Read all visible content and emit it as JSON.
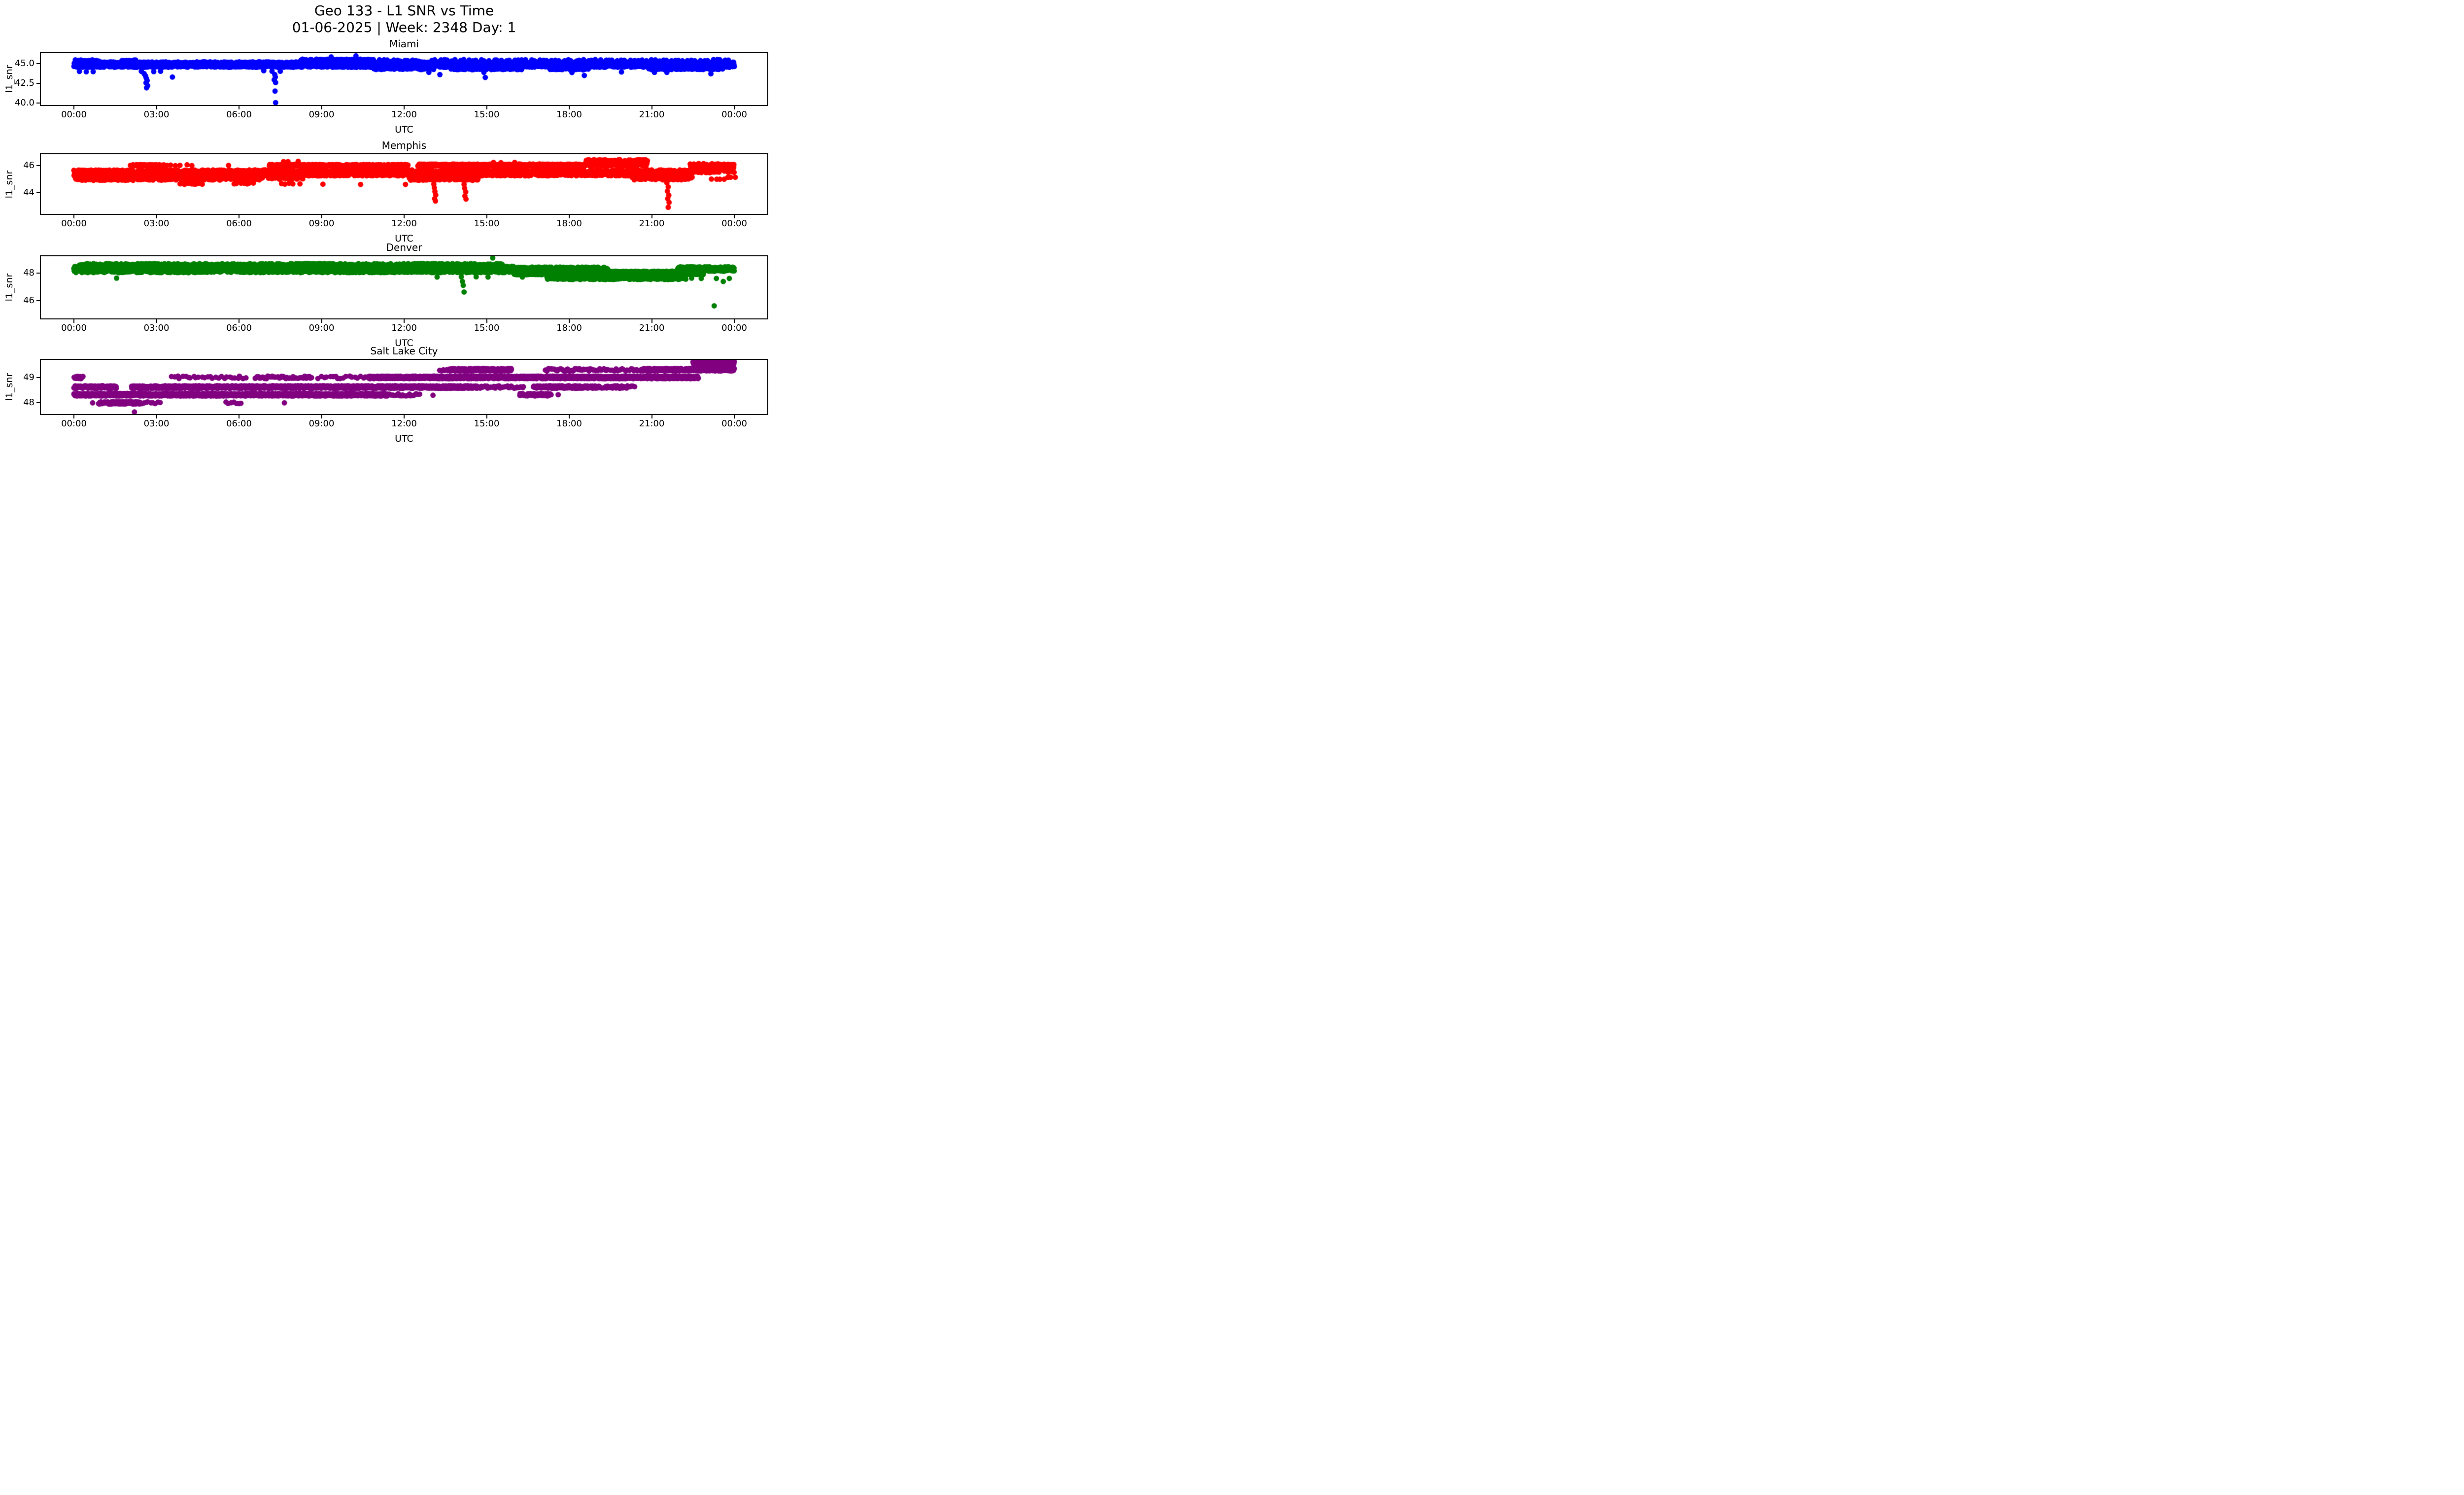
{
  "figure": {
    "suptitle_line1": "Geo 133 - L1 SNR vs Time",
    "suptitle_line2": "01-06-2025 | Week: 2348 Day: 1",
    "background_color": "#ffffff",
    "text_color": "#000000",
    "spine_color": "#000000"
  },
  "chart_data": {
    "type": "scatter",
    "title": "Geo 133 - L1 SNR vs Time",
    "subtitle": "01-06-2025 | Week: 2348 Day: 1",
    "xlabel": "UTC",
    "ylabel": "l1_snr",
    "marker": "o",
    "marker_radius_px": 5.5,
    "grid": false,
    "legend": "none",
    "x_axis": {
      "xlim_hours": [
        -1.2,
        25.2
      ],
      "ticks_hours": [
        0,
        3,
        6,
        9,
        12,
        15,
        18,
        21,
        24
      ],
      "tick_labels": [
        "00:00",
        "03:00",
        "06:00",
        "09:00",
        "12:00",
        "15:00",
        "18:00",
        "21:00",
        "00:00"
      ]
    },
    "band_format": "[t_start_hours, t_end_hours, y_center_snr, y_halfspread_snr, sample_step_minutes]",
    "point_format": "[t_hours, y_snr]",
    "subplots": [
      {
        "title": "Miami",
        "color": "#0000ff",
        "ylim": [
          39.72,
          46.42
        ],
        "yticks": [
          {
            "v": 45.0,
            "label": "45.0"
          },
          {
            "v": 42.5,
            "label": "42.5"
          },
          {
            "v": 40.0,
            "label": "40.0"
          }
        ],
        "bands": [
          [
            0,
            24,
            44.9,
            0.35,
            0.5
          ],
          [
            0.05,
            0.95,
            45.42,
            0.1,
            2.5
          ],
          [
            1.75,
            2.25,
            45.42,
            0.08,
            3
          ],
          [
            8.2,
            10.9,
            45.3,
            0.3,
            0.8
          ],
          [
            11.1,
            12.5,
            45.42,
            0.1,
            6
          ],
          [
            13.0,
            23.9,
            45.45,
            0.1,
            9
          ],
          [
            10.9,
            13.1,
            44.38,
            0.12,
            2.2
          ],
          [
            13.7,
            16.3,
            44.32,
            0.08,
            3.5
          ],
          [
            17.3,
            18.7,
            44.3,
            0.1,
            4
          ],
          [
            20.9,
            23.6,
            44.35,
            0.1,
            2.5
          ]
        ],
        "points": [
          [
            0.2,
            44.02
          ],
          [
            0.45,
            43.98
          ],
          [
            0.7,
            44.0
          ],
          [
            2.45,
            44.05
          ],
          [
            2.55,
            43.75
          ],
          [
            2.6,
            43.45
          ],
          [
            2.63,
            43.15
          ],
          [
            2.66,
            42.85
          ],
          [
            2.62,
            42.55
          ],
          [
            2.68,
            42.2
          ],
          [
            2.64,
            41.92
          ],
          [
            2.9,
            44.0
          ],
          [
            3.15,
            44.05
          ],
          [
            3.58,
            43.3
          ],
          [
            6.9,
            44.12
          ],
          [
            7.2,
            44.05
          ],
          [
            7.3,
            43.62
          ],
          [
            7.32,
            43.3
          ],
          [
            7.28,
            42.95
          ],
          [
            7.33,
            42.6
          ],
          [
            7.31,
            41.5
          ],
          [
            7.33,
            40.02
          ],
          [
            7.5,
            44.05
          ],
          [
            9.35,
            45.88
          ],
          [
            10.25,
            46.02
          ],
          [
            12.9,
            43.9
          ],
          [
            13.3,
            43.62
          ],
          [
            14.9,
            43.9
          ],
          [
            14.95,
            43.25
          ],
          [
            18.1,
            43.88
          ],
          [
            18.55,
            43.5
          ],
          [
            19.9,
            43.95
          ],
          [
            21.1,
            43.9
          ],
          [
            21.55,
            43.9
          ],
          [
            23.15,
            43.72
          ]
        ]
      },
      {
        "title": "Memphis",
        "color": "#ff0000",
        "ylim": [
          42.43,
          46.82
        ],
        "yticks": [
          {
            "v": 46,
            "label": "46"
          },
          {
            "v": 44,
            "label": "44"
          }
        ],
        "bands": [
          [
            0,
            22.4,
            45.45,
            0.22,
            0.5
          ],
          [
            22.4,
            24,
            45.8,
            0.33,
            0.4
          ],
          [
            0.05,
            2.2,
            45.0,
            0.1,
            1.2
          ],
          [
            2.3,
            6.9,
            45.0,
            0.09,
            2.4
          ],
          [
            7.1,
            8.3,
            45.0,
            0.08,
            6
          ],
          [
            12.2,
            14.7,
            45.0,
            0.1,
            1.4
          ],
          [
            20.3,
            22.5,
            45.05,
            0.12,
            2
          ],
          [
            23.2,
            24,
            45.05,
            0.08,
            8
          ],
          [
            2.05,
            3.3,
            46.0,
            0.06,
            1.2
          ],
          [
            3.4,
            4.3,
            46.0,
            0.05,
            10
          ],
          [
            7.1,
            12.15,
            46.0,
            0.07,
            0.9
          ],
          [
            12.5,
            18.6,
            46.02,
            0.08,
            0.7
          ],
          [
            18.6,
            20.85,
            46.18,
            0.25,
            0.6
          ],
          [
            3.85,
            4.75,
            44.65,
            0.05,
            5
          ],
          [
            5.8,
            6.5,
            44.68,
            0.04,
            7
          ],
          [
            7.5,
            8.25,
            44.65,
            0.04,
            10
          ]
        ],
        "points": [
          [
            5.62,
            46.0
          ],
          [
            7.62,
            46.28
          ],
          [
            7.78,
            46.28
          ],
          [
            8.15,
            46.3
          ],
          [
            9.05,
            44.62
          ],
          [
            10.42,
            44.6
          ],
          [
            12.05,
            44.6
          ],
          [
            13.08,
            44.62
          ],
          [
            13.1,
            44.35
          ],
          [
            13.12,
            44.08
          ],
          [
            13.15,
            43.82
          ],
          [
            13.11,
            43.55
          ],
          [
            13.14,
            43.38
          ],
          [
            14.18,
            44.6
          ],
          [
            14.2,
            44.32
          ],
          [
            14.24,
            44.05
          ],
          [
            14.21,
            43.75
          ],
          [
            14.25,
            43.52
          ],
          [
            15.25,
            46.22
          ],
          [
            15.52,
            46.2
          ],
          [
            16.02,
            46.22
          ],
          [
            21.35,
            45.0
          ],
          [
            21.5,
            44.95
          ],
          [
            21.55,
            44.72
          ],
          [
            21.6,
            44.42
          ],
          [
            21.57,
            44.1
          ],
          [
            21.62,
            43.8
          ],
          [
            21.58,
            43.55
          ],
          [
            21.63,
            43.28
          ],
          [
            21.6,
            42.92
          ]
        ]
      },
      {
        "title": "Denver",
        "color": "#008000",
        "ylim": [
          44.71,
          49.2
        ],
        "yticks": [
          {
            "v": 48,
            "label": "48"
          },
          {
            "v": 46,
            "label": "46"
          }
        ],
        "bands": [
          [
            0,
            16.0,
            48.25,
            0.23,
            0.5
          ],
          [
            0.2,
            15.6,
            48.62,
            0.06,
            4.5
          ],
          [
            8.1,
            9.4,
            48.62,
            0.06,
            1.2
          ],
          [
            12.3,
            13.6,
            48.62,
            0.06,
            1.5
          ],
          [
            16.0,
            22.9,
            48.0,
            0.13,
            0.6
          ],
          [
            16.0,
            19.4,
            48.3,
            0.12,
            0.8
          ],
          [
            17.2,
            22.25,
            47.62,
            0.1,
            1.1
          ],
          [
            21.95,
            24.0,
            48.28,
            0.16,
            0.4
          ]
        ],
        "points": [
          [
            1.55,
            47.62
          ],
          [
            13.2,
            47.7
          ],
          [
            14.08,
            47.72
          ],
          [
            14.12,
            47.38
          ],
          [
            14.15,
            47.1
          ],
          [
            14.18,
            46.62
          ],
          [
            14.62,
            47.72
          ],
          [
            15.05,
            47.7
          ],
          [
            16.3,
            47.7
          ],
          [
            15.22,
            49.08
          ],
          [
            22.45,
            47.62
          ],
          [
            22.8,
            47.6
          ],
          [
            23.35,
            47.6
          ],
          [
            23.6,
            47.38
          ],
          [
            23.82,
            47.6
          ],
          [
            23.27,
            45.62
          ]
        ]
      },
      {
        "title": "Salt Lake City",
        "color": "#800080",
        "ylim": [
          47.56,
          49.69
        ],
        "yticks": [
          {
            "v": 49,
            "label": "49"
          },
          {
            "v": 48,
            "label": "48"
          }
        ],
        "bands": [
          [
            22.5,
            24,
            49.56,
            0.07,
            0.35
          ],
          [
            13.3,
            13.65,
            49.3,
            0.05,
            3.5
          ],
          [
            13.65,
            15.9,
            49.3,
            0.05,
            0.5
          ],
          [
            17.15,
            19.4,
            49.3,
            0.05,
            2.8
          ],
          [
            19.5,
            20.55,
            49.3,
            0.05,
            4
          ],
          [
            20.6,
            24,
            49.3,
            0.05,
            0.5
          ],
          [
            0,
            0.35,
            49.0,
            0.05,
            1.8
          ],
          [
            3.55,
            6.3,
            49.0,
            0.05,
            6
          ],
          [
            6.6,
            8.7,
            49.0,
            0.05,
            3
          ],
          [
            8.9,
            10.6,
            49.0,
            0.05,
            6
          ],
          [
            10.7,
            22.7,
            49.0,
            0.05,
            0.45
          ],
          [
            0,
            1.55,
            48.62,
            0.05,
            0.6
          ],
          [
            2.1,
            14.7,
            48.62,
            0.05,
            0.5
          ],
          [
            14.75,
            16.4,
            48.62,
            0.05,
            3
          ],
          [
            16.7,
            19.1,
            48.62,
            0.05,
            0.8
          ],
          [
            19.2,
            20.4,
            48.62,
            0.05,
            2.5
          ],
          [
            0,
            11.4,
            48.32,
            0.05,
            0.45
          ],
          [
            11.45,
            12.6,
            48.32,
            0.05,
            3
          ],
          [
            16.2,
            17.35,
            48.32,
            0.05,
            0.9
          ],
          [
            0.9,
            2.4,
            48.0,
            0.05,
            0.8
          ],
          [
            2.45,
            3.15,
            48.0,
            0.04,
            5
          ],
          [
            5.5,
            6.1,
            48.0,
            0.04,
            6
          ]
        ],
        "points": [
          [
            0.68,
            48.0
          ],
          [
            7.65,
            48.0
          ],
          [
            13.05,
            48.3
          ],
          [
            17.6,
            48.32
          ],
          [
            2.2,
            47.64
          ]
        ]
      }
    ]
  }
}
